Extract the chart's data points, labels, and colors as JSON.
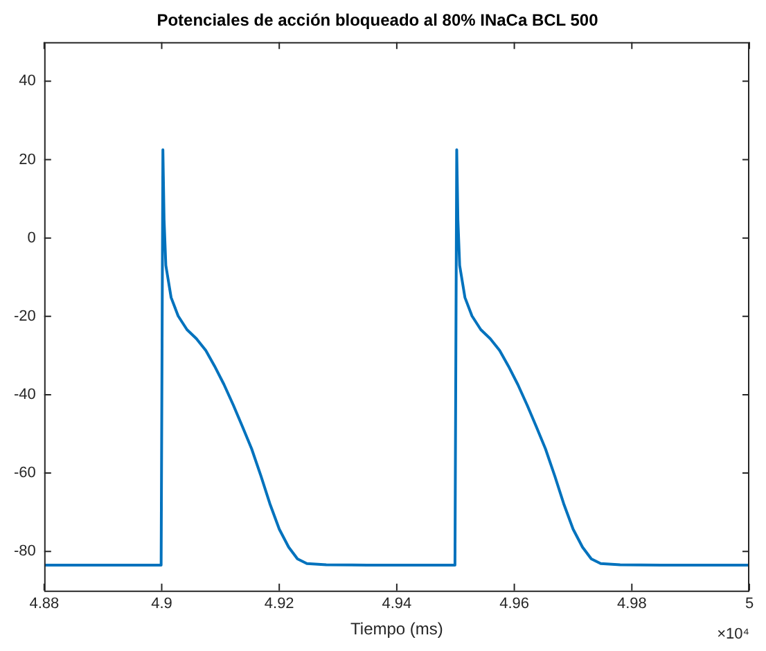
{
  "chart_data": {
    "type": "line",
    "title": "Potenciales de acción bloqueado al 80% INaCa BCL 500",
    "xlabel": "Tiempo (ms)",
    "annotations": [
      "×10⁴"
    ],
    "x": [
      4.88,
      4.8999,
      4.9002,
      4.9004,
      4.9007,
      4.9016,
      4.9028,
      4.9043,
      4.9059,
      4.9075,
      4.909,
      4.9106,
      4.9122,
      4.9137,
      4.9153,
      4.9169,
      4.9184,
      4.92,
      4.9216,
      4.9231,
      4.9247,
      4.928,
      4.935,
      4.9499,
      4.9502,
      4.9504,
      4.9507,
      4.9516,
      4.9528,
      4.9543,
      4.9559,
      4.9575,
      4.959,
      4.9606,
      4.9622,
      4.9637,
      4.9653,
      4.9669,
      4.9684,
      4.97,
      4.9716,
      4.9731,
      4.9747,
      4.978,
      4.985,
      5
    ],
    "series": [
      {
        "color": "#0072bd",
        "values": [
          -83.5,
          -83.5,
          22.5,
          4.7,
          -7,
          -15.2,
          -19.9,
          -23.4,
          -25.7,
          -28.7,
          -32.7,
          -37.4,
          -42.7,
          -48,
          -53.8,
          -60.8,
          -67.8,
          -74.3,
          -78.9,
          -81.9,
          -83.1,
          -83.4,
          -83.5,
          -83.5,
          22.5,
          4.7,
          -7,
          -15.2,
          -19.9,
          -23.4,
          -25.7,
          -28.7,
          -32.7,
          -37.4,
          -42.7,
          -48,
          -53.8,
          -60.8,
          -67.8,
          -74.3,
          -78.9,
          -81.9,
          -83.1,
          -83.4,
          -83.5,
          -83.5
        ]
      }
    ],
    "xlim": [
      4.88,
      5
    ],
    "xticks": [
      4.88,
      4.9,
      4.92,
      4.94,
      4.96,
      4.98,
      5
    ],
    "ylim": [
      -90,
      50
    ],
    "yticks": [
      -80,
      -60,
      -40,
      -20,
      0,
      20,
      40
    ],
    "grid": false,
    "legend": false,
    "marker": "none",
    "line_style": "solid"
  }
}
